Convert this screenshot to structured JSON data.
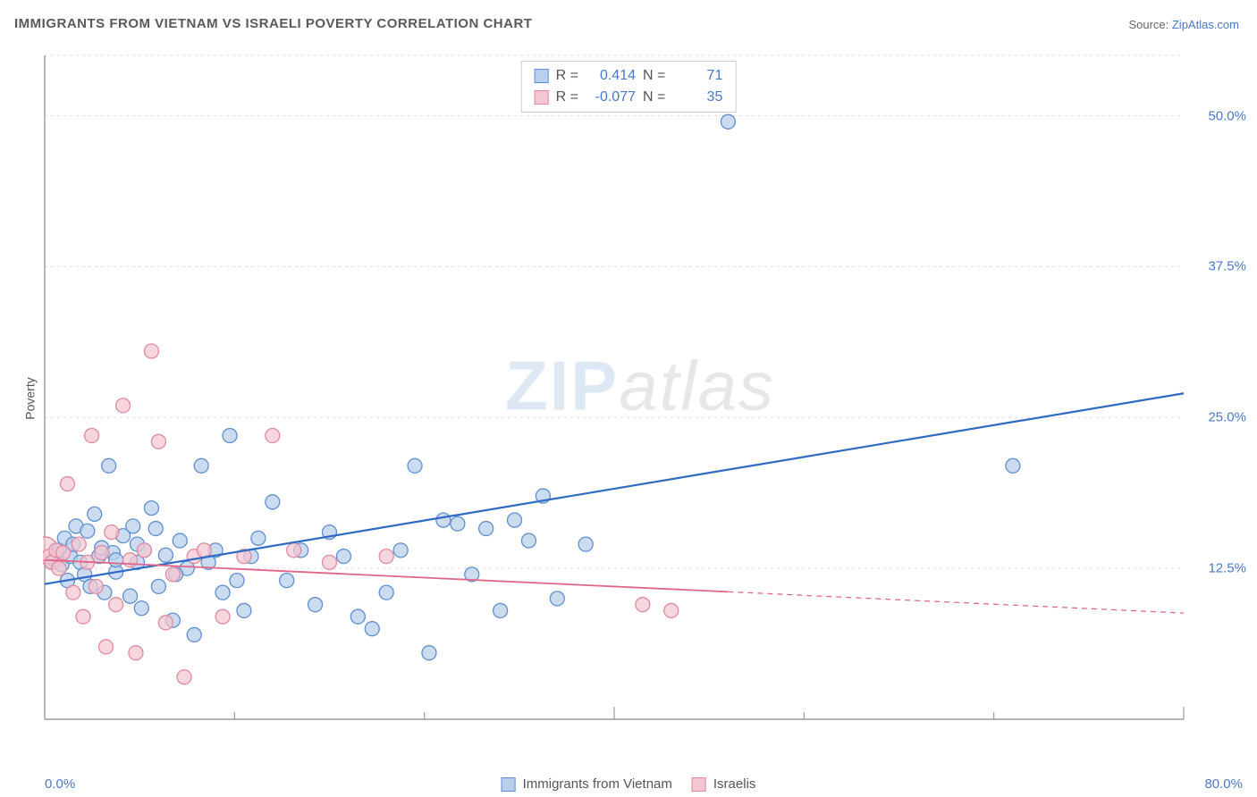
{
  "title": "IMMIGRANTS FROM VIETNAM VS ISRAELI POVERTY CORRELATION CHART",
  "source_prefix": "Source: ",
  "source_name": "ZipAtlas.com",
  "ylabel": "Poverty",
  "watermark_zip": "ZIP",
  "watermark_atlas": "atlas",
  "chart": {
    "type": "scatter",
    "background_color": "#ffffff",
    "grid_color": "#dcdcdc",
    "axis_color": "#888888",
    "xlim": [
      0,
      80
    ],
    "ylim": [
      0,
      55
    ],
    "xticks_major": [
      40,
      80
    ],
    "xticks_minor": [
      13.33,
      26.67,
      53.33,
      66.67
    ],
    "yticks": [
      12.5,
      25.0,
      37.5,
      50.0
    ],
    "ytick_labels": [
      "12.5%",
      "25.0%",
      "37.5%",
      "50.0%"
    ],
    "x_min_label": "0.0%",
    "x_max_label": "80.0%",
    "tick_label_color": "#4a78c8",
    "tick_label_fontsize": 15,
    "title_fontsize": 15,
    "title_color": "#5a5a5a",
    "watermark_fontsize": 78,
    "watermark_zip_color": "#b8cce8",
    "watermark_atlas_color": "#cccccc",
    "series": [
      {
        "key": "vietnam",
        "label": "Immigrants from Vietnam",
        "fill": "#b9d0ec",
        "stroke": "#5e8fd0",
        "marker_r": 8,
        "marker_opacity": 0.75,
        "R": "0.414",
        "N": "71",
        "trend": {
          "x1": 0,
          "y1": 11.2,
          "x2": 80,
          "y2": 27.0,
          "solid_to_x": 80,
          "stroke": "#2f6ac4",
          "width": 2.2
        },
        "points": [
          [
            0.5,
            13.0
          ],
          [
            0.7,
            13.2
          ],
          [
            0.8,
            13.4
          ],
          [
            1.0,
            14.0
          ],
          [
            1.2,
            12.8
          ],
          [
            1.4,
            15.0
          ],
          [
            1.6,
            11.5
          ],
          [
            1.8,
            13.5
          ],
          [
            2.0,
            14.5
          ],
          [
            2.2,
            16.0
          ],
          [
            2.5,
            13.0
          ],
          [
            2.8,
            12.0
          ],
          [
            3.0,
            15.6
          ],
          [
            3.2,
            11.0
          ],
          [
            3.5,
            17.0
          ],
          [
            3.8,
            13.5
          ],
          [
            4.0,
            14.2
          ],
          [
            4.2,
            10.5
          ],
          [
            4.5,
            21.0
          ],
          [
            4.8,
            13.8
          ],
          [
            5.0,
            12.2
          ],
          [
            5.5,
            15.2
          ],
          [
            6.0,
            10.2
          ],
          [
            6.2,
            16.0
          ],
          [
            6.5,
            13.0
          ],
          [
            6.8,
            9.2
          ],
          [
            7.0,
            14.0
          ],
          [
            7.5,
            17.5
          ],
          [
            8.0,
            11.0
          ],
          [
            8.5,
            13.6
          ],
          [
            9.0,
            8.2
          ],
          [
            9.5,
            14.8
          ],
          [
            10.0,
            12.5
          ],
          [
            10.5,
            7.0
          ],
          [
            11.0,
            21.0
          ],
          [
            12.0,
            14.0
          ],
          [
            12.5,
            10.5
          ],
          [
            13.0,
            23.5
          ],
          [
            14.0,
            9.0
          ],
          [
            14.5,
            13.5
          ],
          [
            15.0,
            15.0
          ],
          [
            16.0,
            18.0
          ],
          [
            17.0,
            11.5
          ],
          [
            18.0,
            14.0
          ],
          [
            19.0,
            9.5
          ],
          [
            20.0,
            15.5
          ],
          [
            21.0,
            13.5
          ],
          [
            22.0,
            8.5
          ],
          [
            23.0,
            7.5
          ],
          [
            24.0,
            10.5
          ],
          [
            25.0,
            14.0
          ],
          [
            26.0,
            21.0
          ],
          [
            27.0,
            5.5
          ],
          [
            28.0,
            16.5
          ],
          [
            29.0,
            16.2
          ],
          [
            30.0,
            12.0
          ],
          [
            31.0,
            15.8
          ],
          [
            32.0,
            9.0
          ],
          [
            33.0,
            16.5
          ],
          [
            34.0,
            14.8
          ],
          [
            35.0,
            18.5
          ],
          [
            36.0,
            10.0
          ],
          [
            38.0,
            14.5
          ],
          [
            48.0,
            49.5
          ],
          [
            68.0,
            21.0
          ],
          [
            5.0,
            13.2
          ],
          [
            6.5,
            14.5
          ],
          [
            7.8,
            15.8
          ],
          [
            9.2,
            12.0
          ],
          [
            11.5,
            13.0
          ],
          [
            13.5,
            11.5
          ]
        ]
      },
      {
        "key": "israelis",
        "label": "Israelis",
        "fill": "#f4c6d1",
        "stroke": "#e08aa0",
        "marker_r": 8,
        "marker_opacity": 0.72,
        "R": "-0.077",
        "N": "35",
        "trend": {
          "x1": 0,
          "y1": 13.2,
          "x2": 80,
          "y2": 8.8,
          "solid_to_x": 48,
          "stroke": "#e06688",
          "width": 1.8
        },
        "points": [
          [
            0.3,
            13.5
          ],
          [
            0.5,
            13.0
          ],
          [
            0.8,
            14.0
          ],
          [
            1.0,
            12.5
          ],
          [
            1.3,
            13.8
          ],
          [
            1.6,
            19.5
          ],
          [
            2.0,
            10.5
          ],
          [
            2.4,
            14.5
          ],
          [
            2.7,
            8.5
          ],
          [
            3.0,
            13.0
          ],
          [
            3.3,
            23.5
          ],
          [
            3.6,
            11.0
          ],
          [
            4.0,
            13.8
          ],
          [
            4.3,
            6.0
          ],
          [
            4.7,
            15.5
          ],
          [
            5.0,
            9.5
          ],
          [
            5.5,
            26.0
          ],
          [
            6.0,
            13.2
          ],
          [
            6.4,
            5.5
          ],
          [
            7.0,
            14.0
          ],
          [
            7.5,
            30.5
          ],
          [
            8.0,
            23.0
          ],
          [
            8.5,
            8.0
          ],
          [
            9.0,
            12.0
          ],
          [
            9.8,
            3.5
          ],
          [
            10.5,
            13.5
          ],
          [
            11.2,
            14.0
          ],
          [
            12.5,
            8.5
          ],
          [
            14.0,
            13.5
          ],
          [
            16.0,
            23.5
          ],
          [
            17.5,
            14.0
          ],
          [
            20.0,
            13.0
          ],
          [
            24.0,
            13.5
          ],
          [
            42.0,
            9.5
          ],
          [
            44.0,
            9.0
          ]
        ]
      }
    ],
    "big_markers": [
      {
        "series": "israelis",
        "x": 0.0,
        "y": 14.0,
        "r": 15
      }
    ],
    "legend_top": {
      "R_label": "R =",
      "N_label": "N ="
    }
  }
}
